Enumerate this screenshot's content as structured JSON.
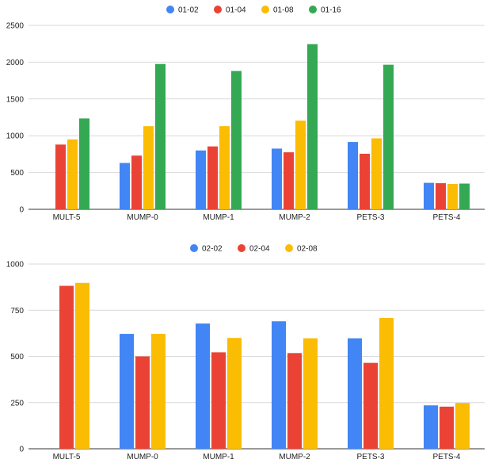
{
  "chart_data": [
    {
      "type": "bar",
      "categories": [
        "MULT-5",
        "MUMP-0",
        "MUMP-1",
        "MUMP-2",
        "PETS-3",
        "PETS-4"
      ],
      "series": [
        {
          "name": "01-02",
          "color": "#4285f4",
          "values": [
            null,
            630,
            800,
            825,
            915,
            360
          ]
        },
        {
          "name": "01-04",
          "color": "#ea4335",
          "values": [
            880,
            730,
            855,
            775,
            755,
            355
          ]
        },
        {
          "name": "01-08",
          "color": "#fbbc04",
          "values": [
            950,
            1130,
            1130,
            1205,
            965,
            345
          ]
        },
        {
          "name": "01-16",
          "color": "#34a853",
          "values": [
            1235,
            1975,
            1880,
            2245,
            1965,
            350
          ]
        }
      ],
      "yticks": [
        "0",
        "500",
        "1000",
        "1500",
        "2000",
        "2500"
      ],
      "ylim": [
        0,
        2500
      ],
      "grid": true,
      "legend": "top"
    },
    {
      "type": "bar",
      "categories": [
        "MULT-5",
        "MUMP-0",
        "MUMP-1",
        "MUMP-2",
        "PETS-3",
        "PETS-4"
      ],
      "series": [
        {
          "name": "02-02",
          "color": "#4285f4",
          "values": [
            null,
            622,
            678,
            690,
            598,
            235
          ]
        },
        {
          "name": "02-04",
          "color": "#ea4335",
          "values": [
            882,
            500,
            522,
            518,
            465,
            228
          ]
        },
        {
          "name": "02-08",
          "color": "#fbbc04",
          "values": [
            898,
            622,
            600,
            598,
            708,
            248
          ]
        }
      ],
      "yticks": [
        "0",
        "250",
        "500",
        "750",
        "1000"
      ],
      "ylim": [
        0,
        1000
      ],
      "grid": true,
      "legend": "top"
    }
  ]
}
